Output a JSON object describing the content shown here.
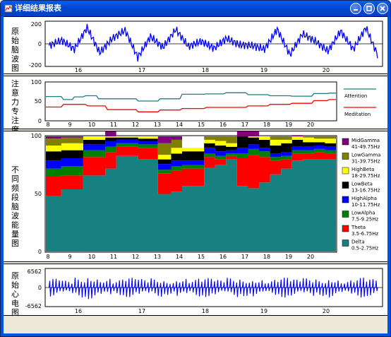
{
  "window": {
    "title": "详细结果报表"
  },
  "panels": {
    "raw_eeg": {
      "label": "原始脑波图",
      "y_ticks": [
        "200",
        "0",
        "-200"
      ],
      "x_ticks": [
        "16",
        "17",
        "18",
        "19",
        "20"
      ]
    },
    "attention": {
      "label": "注意力专注度图",
      "y_ticks": [
        "100",
        "50",
        "0"
      ],
      "x_ticks": [
        "8",
        "9",
        "10",
        "11",
        "12",
        "13",
        "14",
        "15",
        "16",
        "17",
        "18",
        "19",
        "20"
      ],
      "legend": [
        "Attention",
        "Meditation"
      ]
    },
    "bands": {
      "label": "不同频段脑波能量图",
      "y_ticks": [
        "100",
        "50",
        "0"
      ],
      "x_ticks": [
        "8",
        "9",
        "10",
        "11",
        "12",
        "13",
        "14",
        "15",
        "16",
        "17",
        "18",
        "19",
        "20"
      ],
      "legend": [
        {
          "name": "MidGamma",
          "range": "41-49.75Hz"
        },
        {
          "name": "LowGamma",
          "range": "31-39.75Hz"
        },
        {
          "name": "HighBeta",
          "range": "18-29.75Hz"
        },
        {
          "name": "LowBeta",
          "range": "13-16.75Hz"
        },
        {
          "name": "HighAlpha",
          "range": "10-11.75Hz"
        },
        {
          "name": "LowAlpha",
          "range": "7.5-9.25Hz"
        },
        {
          "name": "Theta",
          "range": "3.5-6.75Hz"
        },
        {
          "name": "Delta",
          "range": "0.5-2.75Hz"
        }
      ]
    },
    "ecg": {
      "label": "原始心电图",
      "y_ticks": [
        "6562",
        "0",
        "-6562"
      ],
      "x_ticks": [
        "16",
        "17",
        "18",
        "19",
        "20"
      ]
    }
  },
  "chart_data": [
    {
      "type": "line",
      "title": "",
      "xlabel": "",
      "ylabel": "",
      "xlim": [
        15.55,
        20.85
      ],
      "ylim": [
        -250,
        250
      ],
      "series": [
        {
          "name": "",
          "x": [
            15.6,
            15.8,
            16.0,
            16.2,
            16.4,
            16.6,
            16.8,
            17.0,
            17.2,
            17.4,
            17.6,
            17.8,
            18.0,
            18.2,
            18.4,
            18.6,
            18.8,
            19.0,
            19.2,
            19.4,
            19.6,
            19.8,
            20.0,
            20.2,
            20.4,
            20.6,
            20.8
          ],
          "values": [
            -20,
            40,
            -60,
            180,
            -100,
            60,
            150,
            -150,
            80,
            -40,
            160,
            -30,
            30,
            -50,
            60,
            -10,
            -20,
            -60,
            160,
            -120,
            110,
            30,
            -80,
            140,
            -60,
            180,
            -150
          ]
        }
      ]
    },
    {
      "type": "line",
      "title": "",
      "xlabel": "",
      "ylabel": "",
      "xlim": [
        7.8,
        21
      ],
      "ylim": [
        0,
        100
      ],
      "series": [
        {
          "name": "Attention",
          "x": [
            7.8,
            8.5,
            8.6,
            9.0,
            9.1,
            9.5,
            9.6,
            10.1,
            10.2,
            11.0,
            11.1,
            11.9,
            12.0,
            12.9,
            13.0,
            13.9,
            14.0,
            15.0,
            15.1,
            15.9,
            16.0,
            16.9,
            17.0,
            17.9,
            18.0,
            18.9,
            19.0,
            19.9,
            20.0,
            20.6,
            20.7,
            21.0
          ],
          "values": [
            63,
            63,
            55,
            55,
            62,
            62,
            65,
            65,
            57,
            57,
            57,
            57,
            51,
            51,
            57,
            57,
            69,
            69,
            70,
            70,
            73,
            73,
            68,
            68,
            65,
            65,
            64,
            64,
            71,
            71,
            72,
            72
          ]
        },
        {
          "name": "Meditation",
          "x": [
            7.8,
            8.5,
            8.6,
            9.6,
            9.7,
            10.5,
            10.6,
            11.9,
            12.0,
            12.9,
            13.0,
            13.9,
            14.0,
            15.0,
            15.1,
            16.9,
            17.0,
            17.9,
            18.0,
            18.9,
            19.0,
            19.9,
            20.0,
            20.6,
            20.7,
            21.0
          ],
          "values": [
            35,
            35,
            42,
            42,
            38,
            38,
            28,
            28,
            22,
            22,
            27,
            27,
            31,
            31,
            34,
            34,
            38,
            38,
            42,
            42,
            45,
            45,
            52,
            52,
            55,
            55
          ]
        }
      ]
    },
    {
      "type": "area",
      "title": "",
      "xlabel": "",
      "ylabel": "",
      "xlim": [
        7.8,
        21
      ],
      "ylim": [
        0,
        100
      ],
      "categories": [
        7.8,
        8.5,
        9.5,
        10.5,
        11.0,
        12.0,
        12.9,
        13.5,
        14.0,
        15.0,
        15.5,
        16.0,
        16.5,
        17.0,
        17.5,
        18.0,
        18.5,
        19.0,
        19.5,
        20.0,
        20.5
      ],
      "series": [
        {
          "name": "Delta",
          "values": [
            48,
            54,
            66,
            72,
            83,
            80,
            50,
            52,
            57,
            73,
            75,
            80,
            57,
            55,
            60,
            67,
            72,
            79,
            80,
            80,
            80
          ]
        },
        {
          "name": "Theta",
          "values": [
            17,
            12,
            16,
            14,
            8,
            10,
            18,
            18,
            15,
            9,
            5,
            3,
            24,
            29,
            22,
            12,
            8,
            6,
            5,
            6,
            5
          ]
        },
        {
          "name": "LowAlpha",
          "values": [
            7,
            8,
            6,
            5,
            3,
            3,
            3,
            4,
            3,
            3,
            3,
            2,
            4,
            5,
            5,
            3,
            3,
            3,
            3,
            3,
            3
          ]
        },
        {
          "name": "HighAlpha",
          "values": [
            7,
            7,
            5,
            5,
            3,
            3,
            5,
            5,
            4,
            5,
            4,
            3,
            5,
            4,
            3,
            3,
            3,
            3,
            3,
            3,
            3
          ]
        },
        {
          "name": "LowBeta",
          "values": [
            8,
            7,
            4,
            3,
            2,
            2,
            4,
            6,
            8,
            4,
            5,
            3,
            10,
            6,
            7,
            7,
            8,
            6,
            4,
            3,
            3
          ]
        },
        {
          "name": "HighBeta",
          "values": [
            5,
            6,
            3,
            4,
            1,
            2,
            4,
            5,
            3,
            3,
            4,
            3,
            4,
            3,
            3,
            5,
            3,
            4,
            4,
            3,
            4
          ]
        },
        {
          "name": "LowGamma",
          "values": [
            6,
            5,
            0,
            3,
            0,
            0,
            10,
            7,
            0,
            3,
            4,
            6,
            6,
            3,
            0,
            3,
            3,
            0,
            1,
            2,
            2
          ]
        },
        {
          "name": "MidGamma",
          "values": [
            2,
            1,
            0,
            1,
            0,
            0,
            6,
            3,
            0,
            0,
            0,
            0,
            0,
            0,
            0,
            0,
            0,
            0,
            0,
            0,
            0
          ]
        }
      ]
    },
    {
      "type": "line",
      "title": "",
      "xlabel": "",
      "ylabel": "",
      "xlim": [
        15.55,
        20.85
      ],
      "ylim": [
        -6562,
        6562
      ],
      "series": [
        {
          "name": "",
          "x": [
            15.6,
            15.8,
            16.0,
            16.2,
            16.4,
            16.6,
            16.8,
            17.0,
            17.2,
            17.4,
            17.6,
            17.8,
            18.0,
            18.2,
            18.4,
            18.6,
            18.8,
            19.0,
            19.2,
            19.4,
            19.6,
            19.8,
            20.0,
            20.2,
            20.4,
            20.6,
            20.8
          ],
          "values": [
            3200,
            -2500,
            3600,
            -4200,
            3400,
            -2800,
            3500,
            -3000,
            3300,
            -2600,
            3600,
            -3200,
            3400,
            -2700,
            3500,
            -3100,
            3300,
            -2800,
            3600,
            -2900,
            3400,
            -3000,
            3500,
            -2700,
            3600,
            -3000,
            3400
          ]
        }
      ]
    }
  ],
  "colors": {
    "title_bar": "#0047d6",
    "raw_line": "#0000ff",
    "attention": "#178080",
    "meditation": "#ff0000",
    "MidGamma": "#800080",
    "LowGamma": "#808000",
    "HighBeta": "#ffff00",
    "LowBeta": "#000000",
    "HighAlpha": "#0000ff",
    "LowAlpha": "#008000",
    "Theta": "#ff0000",
    "Delta": "#178080"
  }
}
